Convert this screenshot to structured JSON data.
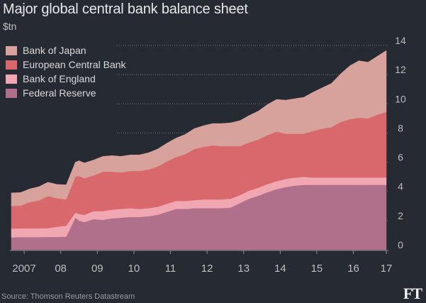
{
  "title": "Major global central bank balance sheet",
  "subtitle": "$tn",
  "source": "Source: Thomson Reuters Datastream",
  "logo_text": "FT",
  "chart_data": {
    "type": "area",
    "stacked": true,
    "x": [
      2006.75,
      2007.0,
      2007.25,
      2007.5,
      2007.75,
      2008.0,
      2008.25,
      2008.5,
      2008.6,
      2008.75,
      2009.0,
      2009.25,
      2009.5,
      2009.75,
      2010.0,
      2010.25,
      2010.5,
      2010.75,
      2011.0,
      2011.25,
      2011.5,
      2011.75,
      2012.0,
      2012.25,
      2012.5,
      2012.75,
      2013.0,
      2013.25,
      2013.5,
      2013.75,
      2014.0,
      2014.25,
      2014.5,
      2014.75,
      2015.0,
      2015.25,
      2015.5,
      2015.75,
      2016.0,
      2016.25,
      2016.5,
      2016.75,
      2017.0
    ],
    "series": [
      {
        "name": "Federal Reserve",
        "color": "#b0708c",
        "values": [
          0.85,
          0.87,
          0.87,
          0.87,
          0.88,
          0.88,
          0.9,
          2.2,
          2.0,
          1.9,
          2.1,
          2.05,
          2.15,
          2.2,
          2.25,
          2.25,
          2.3,
          2.4,
          2.6,
          2.8,
          2.8,
          2.85,
          2.85,
          2.85,
          2.85,
          2.9,
          3.2,
          3.5,
          3.7,
          3.95,
          4.15,
          4.3,
          4.4,
          4.45,
          4.45,
          4.45,
          4.45,
          4.45,
          4.45,
          4.45,
          4.45,
          4.45,
          4.45
        ]
      },
      {
        "name": "Bank of England",
        "color": "#f0a7b2",
        "values": [
          0.6,
          0.6,
          0.6,
          0.6,
          0.6,
          0.7,
          0.75,
          0.35,
          0.45,
          0.5,
          0.55,
          0.6,
          0.6,
          0.6,
          0.6,
          0.55,
          0.55,
          0.55,
          0.55,
          0.55,
          0.55,
          0.55,
          0.6,
          0.6,
          0.6,
          0.6,
          0.55,
          0.55,
          0.55,
          0.55,
          0.55,
          0.55,
          0.55,
          0.55,
          0.5,
          0.5,
          0.5,
          0.5,
          0.5,
          0.5,
          0.5,
          0.5,
          0.5
        ]
      },
      {
        "name": "European Central Bank",
        "color": "#d9686c",
        "values": [
          1.55,
          1.55,
          1.8,
          1.9,
          2.2,
          1.95,
          1.8,
          2.45,
          2.6,
          2.5,
          2.45,
          2.7,
          2.6,
          2.5,
          2.55,
          2.6,
          2.65,
          2.75,
          2.9,
          3.0,
          3.2,
          3.5,
          3.6,
          3.7,
          3.65,
          3.6,
          3.35,
          3.3,
          3.3,
          3.35,
          3.4,
          3.1,
          3.0,
          2.95,
          3.2,
          3.35,
          3.45,
          3.8,
          4.0,
          4.1,
          4.05,
          4.3,
          4.5
        ]
      },
      {
        "name": "Bank of Japan",
        "color": "#d8a29c",
        "values": [
          0.9,
          0.9,
          0.9,
          0.95,
          0.95,
          0.95,
          1.0,
          1.0,
          1.05,
          1.05,
          1.05,
          1.05,
          1.1,
          1.1,
          1.1,
          1.1,
          1.15,
          1.2,
          1.25,
          1.3,
          1.35,
          1.4,
          1.45,
          1.5,
          1.55,
          1.6,
          1.75,
          1.85,
          1.95,
          2.1,
          2.2,
          2.3,
          2.4,
          2.5,
          2.65,
          2.8,
          3.0,
          3.3,
          3.65,
          3.9,
          3.85,
          4.0,
          4.2
        ]
      }
    ],
    "ylim": [
      0,
      14
    ],
    "yticks": [
      "0",
      "2",
      "4",
      "6",
      "8",
      "10",
      "12",
      "14"
    ],
    "xtick_labels": [
      "2007",
      "08",
      "09",
      "10",
      "11",
      "12",
      "13",
      "14",
      "15",
      "16",
      "17"
    ],
    "xtick_values": [
      2007.1,
      2008.1,
      2009.1,
      2010.1,
      2011.1,
      2012.1,
      2013.1,
      2014.1,
      2015.1,
      2016.1,
      2017.0
    ],
    "legend_order": [
      "Bank of Japan",
      "European Central Bank",
      "Bank of England",
      "Federal Reserve"
    ],
    "legend_position": "top-left",
    "grid": true
  }
}
